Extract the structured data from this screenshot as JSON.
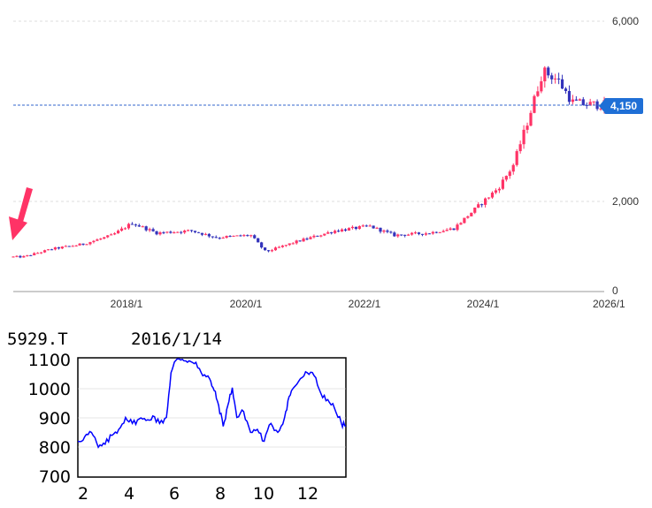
{
  "main_chart": {
    "current_price_label": "4,150",
    "y_tick_labels": [
      "6,000",
      "2,000",
      "0"
    ],
    "x_tick_labels": [
      "2018/1",
      "2020/1",
      "2022/1",
      "2024/1",
      "2026/1"
    ],
    "colors": {
      "up": "#ff3366",
      "down": "#3333bb",
      "price_line": "#3366cc",
      "label_bg": "#1f6fd6",
      "arrow": "#ff3366",
      "grid": "#dddddd"
    }
  },
  "sub_chart": {
    "ticker": "5929.T",
    "date": "2016/1/14",
    "y_tick_labels": [
      "1100",
      "1000",
      "900",
      "800",
      "700"
    ],
    "x_tick_labels": [
      "2",
      "4",
      "6",
      "8",
      "10",
      "12"
    ],
    "line_color": "#0000ff"
  },
  "chart_data": [
    {
      "type": "candlestick",
      "ylim": [
        0,
        6000
      ],
      "current_price": 4150,
      "x_ticks": [
        "2018/1",
        "2020/1",
        "2022/1",
        "2024/1",
        "2026/1"
      ],
      "approx_closes_by_month": [
        {
          "x": "2016/3",
          "close": 770
        },
        {
          "x": "2016/9",
          "close": 950
        },
        {
          "x": "2017/3",
          "close": 1050
        },
        {
          "x": "2017/9",
          "close": 1250
        },
        {
          "x": "2018/1",
          "close": 1520
        },
        {
          "x": "2018/6",
          "close": 1300
        },
        {
          "x": "2019/1",
          "close": 1350
        },
        {
          "x": "2019/6",
          "close": 1200
        },
        {
          "x": "2020/1",
          "close": 1250
        },
        {
          "x": "2020/4",
          "close": 880
        },
        {
          "x": "2020/10",
          "close": 1100
        },
        {
          "x": "2021/6",
          "close": 1350
        },
        {
          "x": "2022/1",
          "close": 1450
        },
        {
          "x": "2022/6",
          "close": 1250
        },
        {
          "x": "2023/1",
          "close": 1300
        },
        {
          "x": "2023/6",
          "close": 1400
        },
        {
          "x": "2023/12",
          "close": 2000
        },
        {
          "x": "2024/3",
          "close": 2300
        },
        {
          "x": "2024/6",
          "close": 2800
        },
        {
          "x": "2024/9",
          "close": 3800
        },
        {
          "x": "2024/12",
          "close": 4900
        },
        {
          "x": "2025/3",
          "close": 4700
        },
        {
          "x": "2025/6",
          "close": 4200
        },
        {
          "x": "2025/9",
          "close": 4150
        }
      ]
    },
    {
      "type": "line",
      "title": "5929.T 2016/1/14",
      "ylim": [
        700,
        1100
      ],
      "x_ticks": [
        "2",
        "4",
        "6",
        "8",
        "10",
        "12"
      ],
      "xlim": [
        1.9,
        13.7
      ],
      "points": [
        [
          1.9,
          820
        ],
        [
          2.2,
          835
        ],
        [
          2.5,
          850
        ],
        [
          2.8,
          800
        ],
        [
          3.1,
          810
        ],
        [
          3.4,
          840
        ],
        [
          3.7,
          860
        ],
        [
          4.0,
          900
        ],
        [
          4.3,
          880
        ],
        [
          4.6,
          895
        ],
        [
          4.9,
          890
        ],
        [
          5.2,
          905
        ],
        [
          5.5,
          880
        ],
        [
          5.8,
          900
        ],
        [
          6.0,
          1050
        ],
        [
          6.2,
          1090
        ],
        [
          6.5,
          1095
        ],
        [
          6.8,
          1090
        ],
        [
          7.1,
          1085
        ],
        [
          7.4,
          1040
        ],
        [
          7.7,
          1030
        ],
        [
          7.9,
          990
        ],
        [
          8.1,
          940
        ],
        [
          8.3,
          870
        ],
        [
          8.5,
          940
        ],
        [
          8.7,
          1000
        ],
        [
          8.9,
          900
        ],
        [
          9.2,
          920
        ],
        [
          9.5,
          850
        ],
        [
          9.8,
          860
        ],
        [
          10.1,
          820
        ],
        [
          10.4,
          880
        ],
        [
          10.7,
          850
        ],
        [
          11.0,
          900
        ],
        [
          11.2,
          970
        ],
        [
          11.4,
          1000
        ],
        [
          11.7,
          1030
        ],
        [
          12.0,
          1050
        ],
        [
          12.3,
          1040
        ],
        [
          12.6,
          980
        ],
        [
          12.9,
          960
        ],
        [
          13.2,
          930
        ],
        [
          13.5,
          880
        ],
        [
          13.7,
          870
        ]
      ]
    }
  ]
}
